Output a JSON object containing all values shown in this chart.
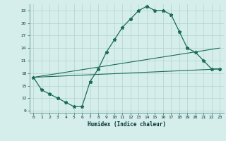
{
  "x_main": [
    0,
    1,
    2,
    3,
    4,
    5,
    6,
    7,
    8,
    9,
    10,
    11,
    12,
    13,
    14,
    15,
    16,
    17,
    18,
    19,
    20,
    21,
    22,
    23
  ],
  "y_main": [
    17,
    14,
    13,
    12,
    11,
    10,
    10,
    16,
    19,
    23,
    26,
    29,
    31,
    33,
    34,
    33,
    33,
    32,
    28,
    24,
    23,
    21,
    19,
    19
  ],
  "y_line1_x": [
    0,
    23
  ],
  "y_line1_y": [
    17,
    19
  ],
  "y_line2_x": [
    0,
    23
  ],
  "y_line2_y": [
    17,
    24
  ],
  "xlabel": "Humidex (Indice chaleur)",
  "xlim": [
    -0.5,
    23.5
  ],
  "ylim": [
    8.5,
    34.5
  ],
  "yticks": [
    9,
    12,
    15,
    18,
    21,
    24,
    27,
    30,
    33
  ],
  "xticks": [
    0,
    1,
    2,
    3,
    4,
    5,
    6,
    7,
    8,
    9,
    10,
    11,
    12,
    13,
    14,
    15,
    16,
    17,
    18,
    19,
    20,
    21,
    22,
    23
  ],
  "bg_color": "#d6eeeb",
  "line_color": "#1a6b5a",
  "grid_color": "#b0d4ce"
}
